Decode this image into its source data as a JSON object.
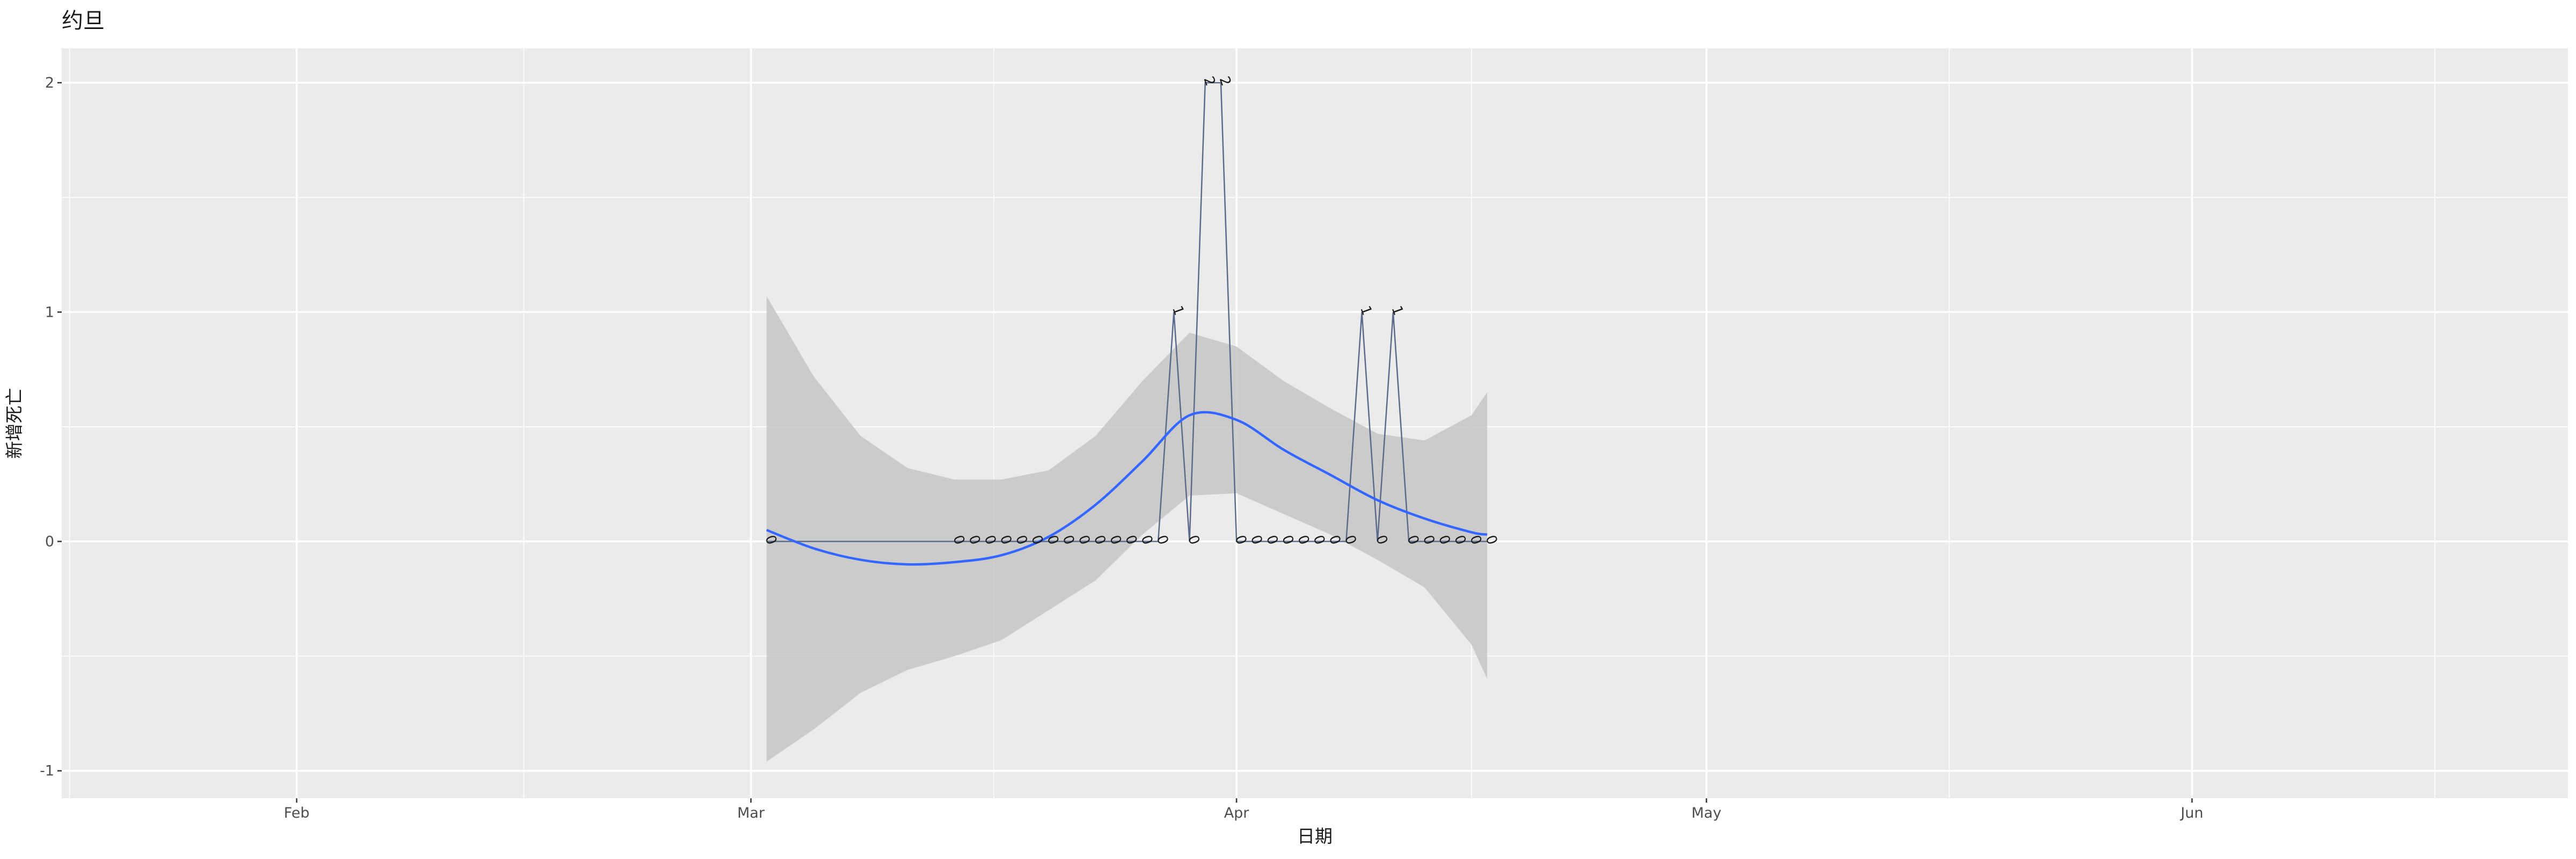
{
  "chart_data": {
    "type": "line",
    "title": "约旦",
    "xlabel": "日期",
    "ylabel": "新增死亡",
    "x_axis": {
      "scale": "date",
      "range": [
        "2020-01-17",
        "2020-06-25"
      ],
      "ticks": [
        {
          "date": "2020-02-01",
          "label": "Feb"
        },
        {
          "date": "2020-03-01",
          "label": "Mar"
        },
        {
          "date": "2020-04-01",
          "label": "Apr"
        },
        {
          "date": "2020-05-01",
          "label": "May"
        },
        {
          "date": "2020-06-01",
          "label": "Jun"
        }
      ]
    },
    "y_axis": {
      "range": [
        -1.12,
        2.15
      ],
      "ticks": [
        -1,
        0,
        1,
        2
      ]
    },
    "grid": true,
    "colors": {
      "panel": "#ebebeb",
      "grid": "#ffffff",
      "line": "#5b6b8c",
      "smooth": "#3366ff",
      "ribbon": "#c6c6c6"
    },
    "series": [
      {
        "points": [
          {
            "x": "2020-03-02",
            "y": 0
          },
          {
            "x": "2020-03-14",
            "y": 0
          },
          {
            "x": "2020-03-15",
            "y": 0
          },
          {
            "x": "2020-03-16",
            "y": 0
          },
          {
            "x": "2020-03-17",
            "y": 0
          },
          {
            "x": "2020-03-18",
            "y": 0
          },
          {
            "x": "2020-03-19",
            "y": 0
          },
          {
            "x": "2020-03-20",
            "y": 0
          },
          {
            "x": "2020-03-21",
            "y": 0
          },
          {
            "x": "2020-03-22",
            "y": 0
          },
          {
            "x": "2020-03-23",
            "y": 0
          },
          {
            "x": "2020-03-24",
            "y": 0
          },
          {
            "x": "2020-03-25",
            "y": 0
          },
          {
            "x": "2020-03-26",
            "y": 0
          },
          {
            "x": "2020-03-27",
            "y": 0
          },
          {
            "x": "2020-03-28",
            "y": 1
          },
          {
            "x": "2020-03-29",
            "y": 0
          },
          {
            "x": "2020-03-30",
            "y": 2
          },
          {
            "x": "2020-03-31",
            "y": 2
          },
          {
            "x": "2020-04-01",
            "y": 0
          },
          {
            "x": "2020-04-02",
            "y": 0
          },
          {
            "x": "2020-04-03",
            "y": 0
          },
          {
            "x": "2020-04-04",
            "y": 0
          },
          {
            "x": "2020-04-05",
            "y": 0
          },
          {
            "x": "2020-04-06",
            "y": 0
          },
          {
            "x": "2020-04-07",
            "y": 0
          },
          {
            "x": "2020-04-08",
            "y": 0
          },
          {
            "x": "2020-04-09",
            "y": 1
          },
          {
            "x": "2020-04-10",
            "y": 0
          },
          {
            "x": "2020-04-11",
            "y": 1
          },
          {
            "x": "2020-04-12",
            "y": 0
          },
          {
            "x": "2020-04-13",
            "y": 0
          },
          {
            "x": "2020-04-14",
            "y": 0
          },
          {
            "x": "2020-04-15",
            "y": 0
          },
          {
            "x": "2020-04-16",
            "y": 0
          },
          {
            "x": "2020-04-17",
            "y": 0
          }
        ]
      }
    ],
    "smooth": [
      {
        "x": "2020-03-02",
        "y": 0.05,
        "lower": -0.96,
        "upper": 1.07
      },
      {
        "x": "2020-03-05",
        "y": -0.03,
        "lower": -0.82,
        "upper": 0.72
      },
      {
        "x": "2020-03-08",
        "y": -0.08,
        "lower": -0.66,
        "upper": 0.46
      },
      {
        "x": "2020-03-11",
        "y": -0.1,
        "lower": -0.56,
        "upper": 0.32
      },
      {
        "x": "2020-03-14",
        "y": -0.09,
        "lower": -0.5,
        "upper": 0.27
      },
      {
        "x": "2020-03-17",
        "y": -0.06,
        "lower": -0.43,
        "upper": 0.27
      },
      {
        "x": "2020-03-20",
        "y": 0.02,
        "lower": -0.3,
        "upper": 0.31
      },
      {
        "x": "2020-03-23",
        "y": 0.16,
        "lower": -0.17,
        "upper": 0.46
      },
      {
        "x": "2020-03-26",
        "y": 0.35,
        "lower": 0.03,
        "upper": 0.7
      },
      {
        "x": "2020-03-29",
        "y": 0.55,
        "lower": 0.2,
        "upper": 0.91
      },
      {
        "x": "2020-04-01",
        "y": 0.53,
        "lower": 0.21,
        "upper": 0.85
      },
      {
        "x": "2020-04-04",
        "y": 0.4,
        "lower": 0.12,
        "upper": 0.7
      },
      {
        "x": "2020-04-07",
        "y": 0.29,
        "lower": 0.03,
        "upper": 0.58
      },
      {
        "x": "2020-04-10",
        "y": 0.18,
        "lower": -0.08,
        "upper": 0.47
      },
      {
        "x": "2020-04-13",
        "y": 0.1,
        "lower": -0.2,
        "upper": 0.44
      },
      {
        "x": "2020-04-16",
        "y": 0.04,
        "lower": -0.45,
        "upper": 0.55
      },
      {
        "x": "2020-04-17",
        "y": 0.03,
        "lower": -0.6,
        "upper": 0.65
      }
    ]
  }
}
